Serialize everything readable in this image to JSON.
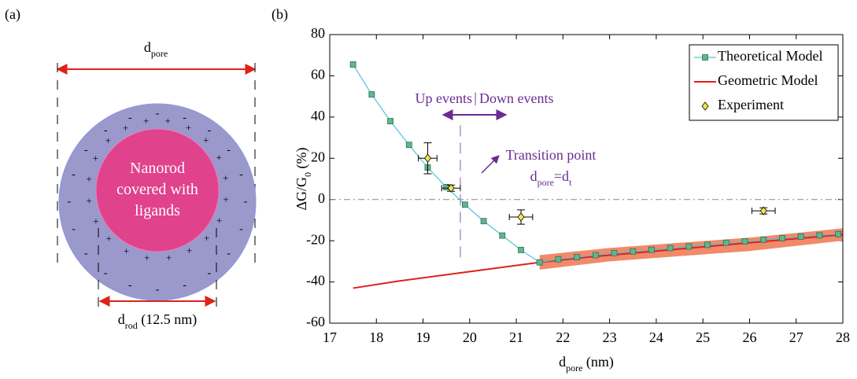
{
  "panel_a": {
    "label": "(a)",
    "pore_label": [
      {
        "text": "d"
      },
      {
        "text": "pore",
        "sub": true
      }
    ],
    "rod_text": [
      "Nanorod",
      "covered with",
      "ligands"
    ],
    "rod_label": [
      {
        "text": "d"
      },
      {
        "text": "rod",
        "sub": true
      },
      {
        "text": " (12.5 nm)"
      }
    ]
  },
  "chart_data": {
    "type": "line",
    "panel_label": "(b)",
    "xlabel": [
      {
        "text": "d"
      },
      {
        "text": "pore",
        "sub": true
      },
      {
        "text": " (nm)"
      }
    ],
    "ylabel": [
      {
        "text": "ΔG/G"
      },
      {
        "text": "0",
        "sub": true
      },
      {
        "text": " (%)"
      }
    ],
    "xlim": [
      17,
      28
    ],
    "xticks": [
      17,
      18,
      19,
      20,
      21,
      22,
      23,
      24,
      25,
      26,
      27,
      28
    ],
    "ylim": [
      -60,
      80
    ],
    "yticks": [
      -60,
      -40,
      -20,
      0,
      20,
      40,
      60,
      80
    ],
    "grid": false,
    "legend": "upper right",
    "hline": 0,
    "vline": {
      "x": 19.8,
      "y": [
        36,
        -29
      ]
    },
    "annotations": {
      "up": "Up events",
      "sep": "|",
      "down": "Down events",
      "transition": "Transition point",
      "dt": [
        {
          "text": "d"
        },
        {
          "text": "pore",
          "sub": true
        },
        {
          "text": "=d"
        },
        {
          "text": "t",
          "sub": true
        }
      ]
    },
    "band": {
      "color": "#f08a6a",
      "x": [
        21.5,
        23,
        24.5,
        26,
        28
      ],
      "lower": [
        -34,
        -30,
        -27.5,
        -25,
        -20
      ],
      "upper": [
        -27,
        -23.5,
        -21,
        -18.5,
        -14
      ]
    },
    "series": [
      {
        "name": "Theoretical Model",
        "color": "#5cb88c",
        "line_color": "#4ec3da",
        "x": [
          17.5,
          17.9,
          18.3,
          18.7,
          19.1,
          19.5,
          19.9,
          20.3,
          20.7,
          21.1,
          21.5,
          21.9,
          22.3,
          22.7,
          23.1,
          23.5,
          23.9,
          24.3,
          24.7,
          25.1,
          25.5,
          25.9,
          26.3,
          26.7,
          27.1,
          27.5,
          27.9
        ],
        "values": [
          65.5,
          51,
          38,
          26.5,
          15.5,
          6,
          -2.5,
          -10.5,
          -17.5,
          -24.5,
          -30.5,
          -29,
          -28,
          -27,
          -26,
          -25.2,
          -24.4,
          -23.6,
          -22.8,
          -22,
          -21,
          -20.3,
          -19.5,
          -18.8,
          -18,
          -17.4,
          -16.8
        ]
      },
      {
        "name": "Geometric Model",
        "color": "#e0201a",
        "x": [
          17.5,
          18.5,
          19.5,
          20.5,
          21.5,
          22.5,
          23.5,
          24.5,
          25.5,
          26.5,
          27.5,
          28
        ],
        "values": [
          -43,
          -39.5,
          -36.5,
          -33.5,
          -30.5,
          -28,
          -26,
          -24,
          -22,
          -20,
          -18,
          -17
        ]
      },
      {
        "name": "Experiment",
        "color": "#f2e64a",
        "x": [
          19.1,
          19.6,
          21.1,
          26.3
        ],
        "values": [
          20,
          5.5,
          -8.5,
          -5.5
        ],
        "yerr": [
          7.5,
          1.5,
          3.5,
          1.5
        ],
        "xerr": [
          0.2,
          0.2,
          0.25,
          0.25
        ]
      }
    ]
  }
}
